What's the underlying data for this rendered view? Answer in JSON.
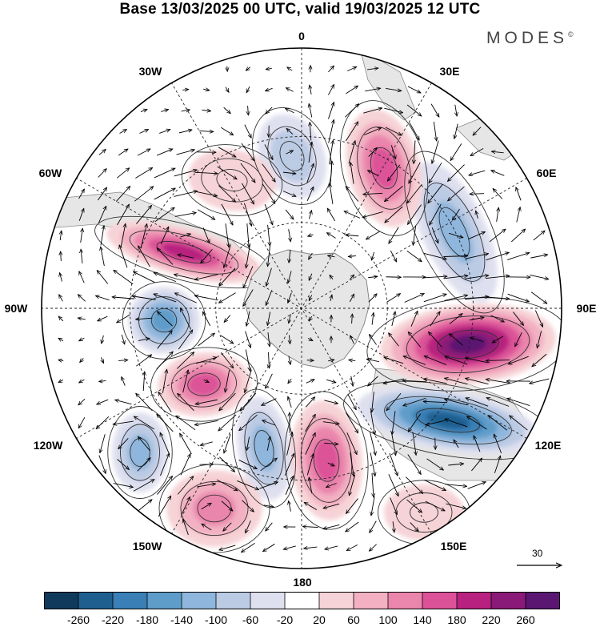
{
  "title": "Base 13/03/2025 00 UTC, valid 19/03/2025 12 UTC",
  "brand": {
    "name": "MODES",
    "mark": "©"
  },
  "longitude_labels": {
    "lon_0": "0",
    "lon_30e": "30E",
    "lon_60e": "60E",
    "lon_90e": "90E",
    "lon_120e": "120E",
    "lon_150e": "150E",
    "lon_180": "180",
    "lon_150w": "150W",
    "lon_120w": "120W",
    "lon_90w": "90W",
    "lon_60w": "60W",
    "lon_30w": "30W"
  },
  "wind_reference": {
    "value": "30"
  },
  "colorbar": {
    "colors": [
      "#0f3a5c",
      "#1f5f8f",
      "#3a7fb5",
      "#5e9cc9",
      "#8fb6dc",
      "#bccbe4",
      "#dfe0ef",
      "#ffffff",
      "#f6d3d6",
      "#f2b0c2",
      "#ea85ac",
      "#dc5298",
      "#b8217f",
      "#8a1a78",
      "#5a1670"
    ],
    "ticks": [
      "-260",
      "-220",
      "-180",
      "-140",
      "-100",
      "-60",
      "-20",
      "20",
      "60",
      "100",
      "140",
      "180",
      "220",
      "260"
    ]
  },
  "anomalies": [
    {
      "name": "neg-30E-60E-90E",
      "value": -140
    },
    {
      "name": "pos-90E-120E",
      "value": 280
    },
    {
      "name": "neg-120E",
      "value": -240
    },
    {
      "name": "pos-180",
      "value": 160
    },
    {
      "name": "neg-150W-180",
      "value": -150
    },
    {
      "name": "pos-150W",
      "value": 120
    },
    {
      "name": "neg-120W",
      "value": -150
    },
    {
      "name": "pos-105W",
      "value": 190
    },
    {
      "name": "neg-90W",
      "value": -160
    },
    {
      "name": "pos-60W-80W",
      "value": 200
    },
    {
      "name": "pos-15E-30E",
      "value": 160
    },
    {
      "name": "neg-15W",
      "value": -80
    },
    {
      "name": "pos-30W-45W",
      "value": 60
    },
    {
      "name": "pos-150E",
      "value": 40
    }
  ]
}
